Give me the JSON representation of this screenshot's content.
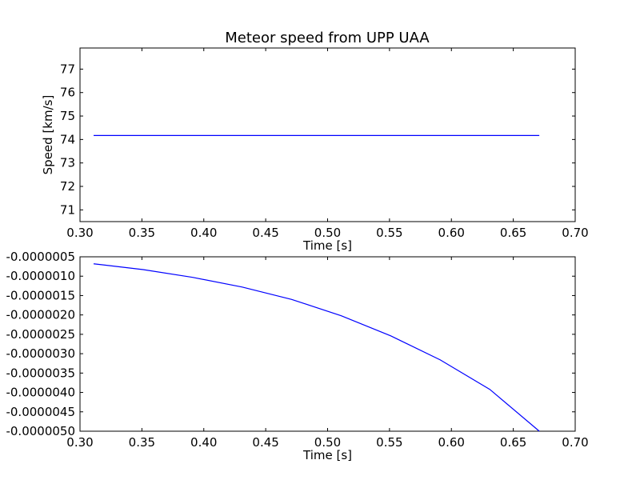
{
  "chart_data": [
    {
      "type": "line",
      "title": "Meteor speed from  UPP UAA",
      "xlabel": "Time [s]",
      "ylabel": "Speed [km/s]",
      "xlim": [
        0.3,
        0.7
      ],
      "ylim": [
        70.5,
        77.9
      ],
      "xticks": [
        "0.30",
        "0.35",
        "0.40",
        "0.45",
        "0.50",
        "0.55",
        "0.60",
        "0.65",
        "0.70"
      ],
      "yticks": [
        "71",
        "72",
        "73",
        "74",
        "75",
        "76",
        "77"
      ],
      "grid": false,
      "series_color": "#0000ff",
      "series": [
        {
          "x": [
            0.311,
            0.671
          ],
          "y": [
            74.17,
            74.17
          ]
        }
      ]
    },
    {
      "type": "line",
      "title": "",
      "xlabel": "Time [s]",
      "ylabel": "",
      "xlim": [
        0.3,
        0.7
      ],
      "ylim": [
        -5e-06,
        -5e-07
      ],
      "xticks": [
        "0.30",
        "0.35",
        "0.40",
        "0.45",
        "0.50",
        "0.55",
        "0.60",
        "0.65",
        "0.70"
      ],
      "yticks": [
        "-0.0000005",
        "-0.0000010",
        "-0.0000015",
        "-0.0000020",
        "-0.0000025",
        "-0.0000030",
        "-0.0000035",
        "-0.0000040",
        "-0.0000045",
        "-0.0000050"
      ],
      "grid": false,
      "series_color": "#0000ff",
      "series": [
        {
          "x": [
            0.311,
            0.351,
            0.391,
            0.431,
            0.471,
            0.511,
            0.551,
            0.591,
            0.631,
            0.671
          ],
          "y": [
            -6.8e-07,
            -8.3e-07,
            -1.03e-06,
            -1.28e-06,
            -1.6e-06,
            -2.02e-06,
            -2.54e-06,
            -3.16e-06,
            -3.92e-06,
            -5e-06
          ]
        }
      ]
    }
  ]
}
